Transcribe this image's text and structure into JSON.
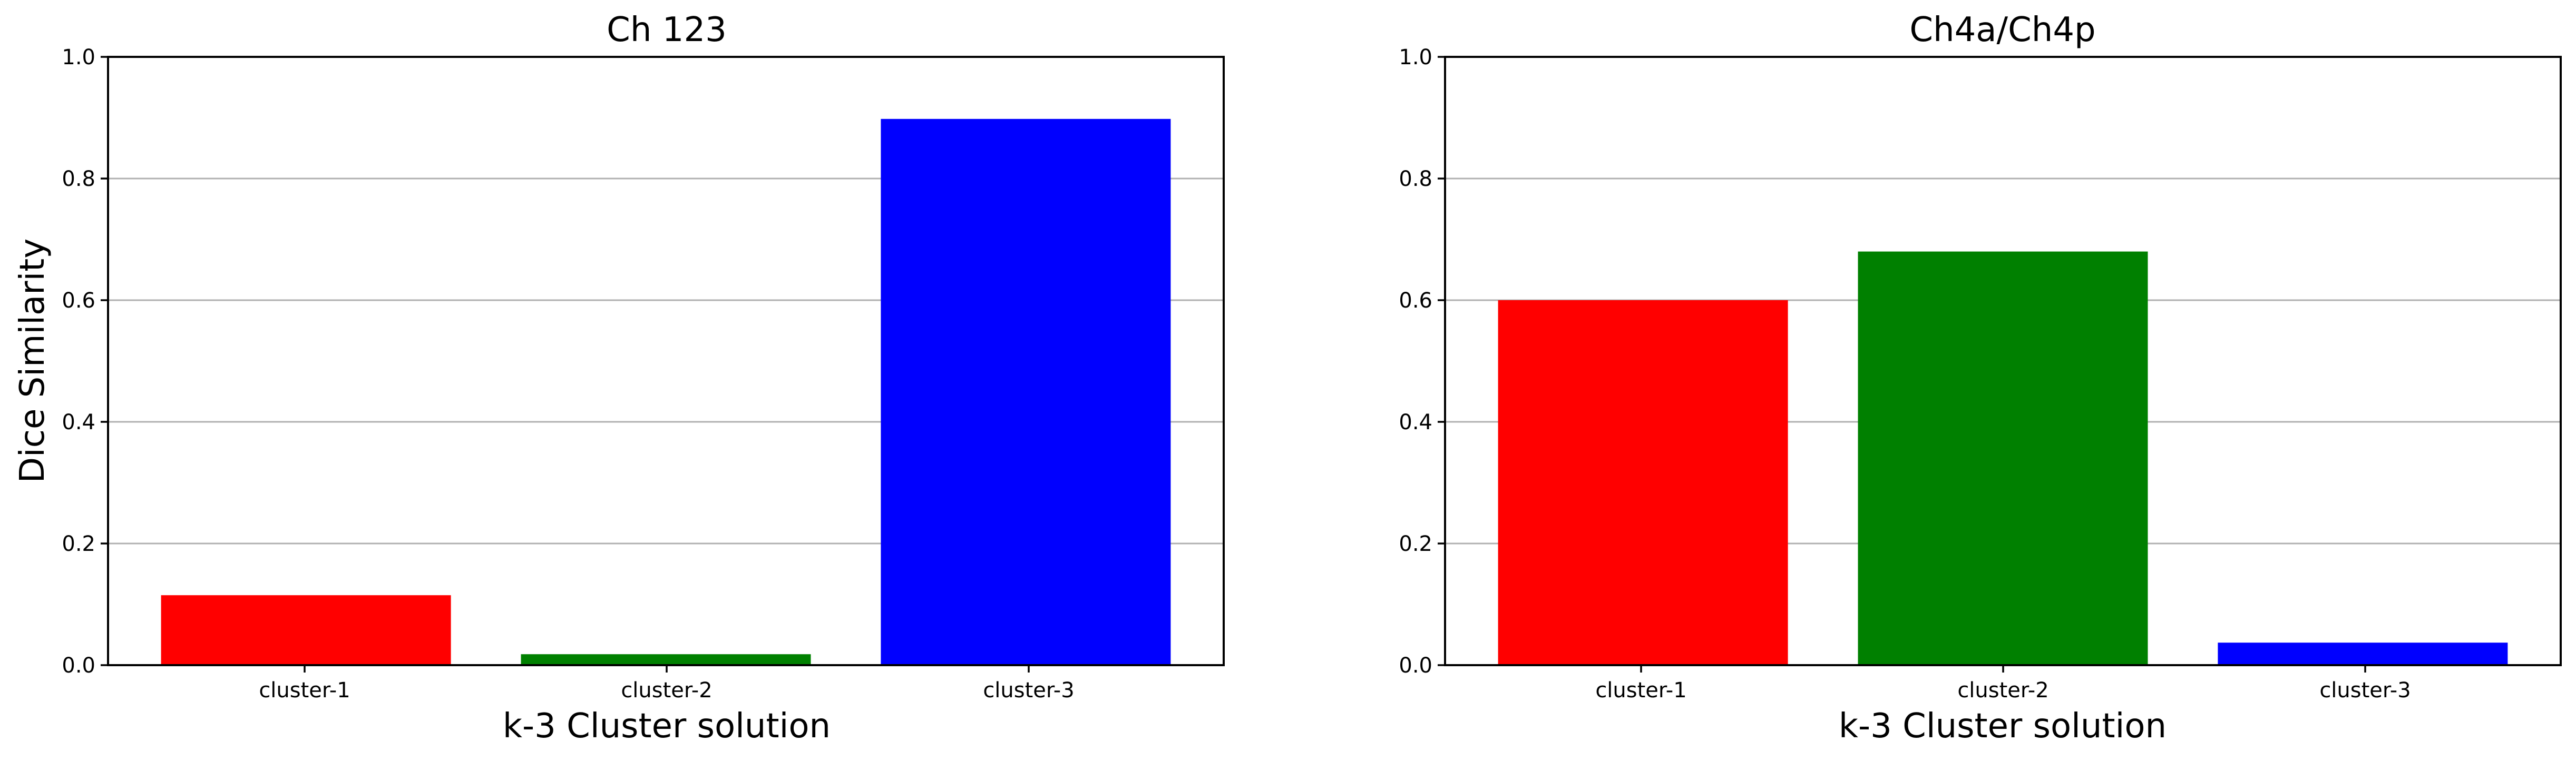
{
  "colors": {
    "cluster-1": "#ff0000",
    "cluster-2": "#008000",
    "cluster-3": "#0000ff",
    "grid": "#b0b0b0",
    "axis": "#000000"
  },
  "chart_data": [
    {
      "type": "bar",
      "title": "Ch 123",
      "xlabel": "k-3 Cluster solution",
      "ylabel": "Dice Similarity",
      "categories": [
        "cluster-1",
        "cluster-2",
        "cluster-3"
      ],
      "values": [
        0.115,
        0.018,
        0.898
      ],
      "bar_colors": [
        "#ff0000",
        "#008000",
        "#0000ff"
      ],
      "ylim": [
        0,
        1.0
      ],
      "yticks": [
        0.0,
        0.2,
        0.4,
        0.6,
        0.8,
        1.0
      ],
      "ytick_labels": [
        "0.0",
        "0.2",
        "0.4",
        "0.6",
        "0.8",
        "1.0"
      ],
      "grid": "horizontal"
    },
    {
      "type": "bar",
      "title": "Ch4a/Ch4p",
      "xlabel": "k-3 Cluster solution",
      "ylabel": "",
      "categories": [
        "cluster-1",
        "cluster-2",
        "cluster-3"
      ],
      "values": [
        0.6,
        0.68,
        0.037
      ],
      "bar_colors": [
        "#ff0000",
        "#008000",
        "#0000ff"
      ],
      "ylim": [
        0,
        1.0
      ],
      "yticks": [
        0.0,
        0.2,
        0.4,
        0.6,
        0.8,
        1.0
      ],
      "ytick_labels": [
        "0.0",
        "0.2",
        "0.4",
        "0.6",
        "0.8",
        "1.0"
      ],
      "grid": "horizontal"
    }
  ]
}
